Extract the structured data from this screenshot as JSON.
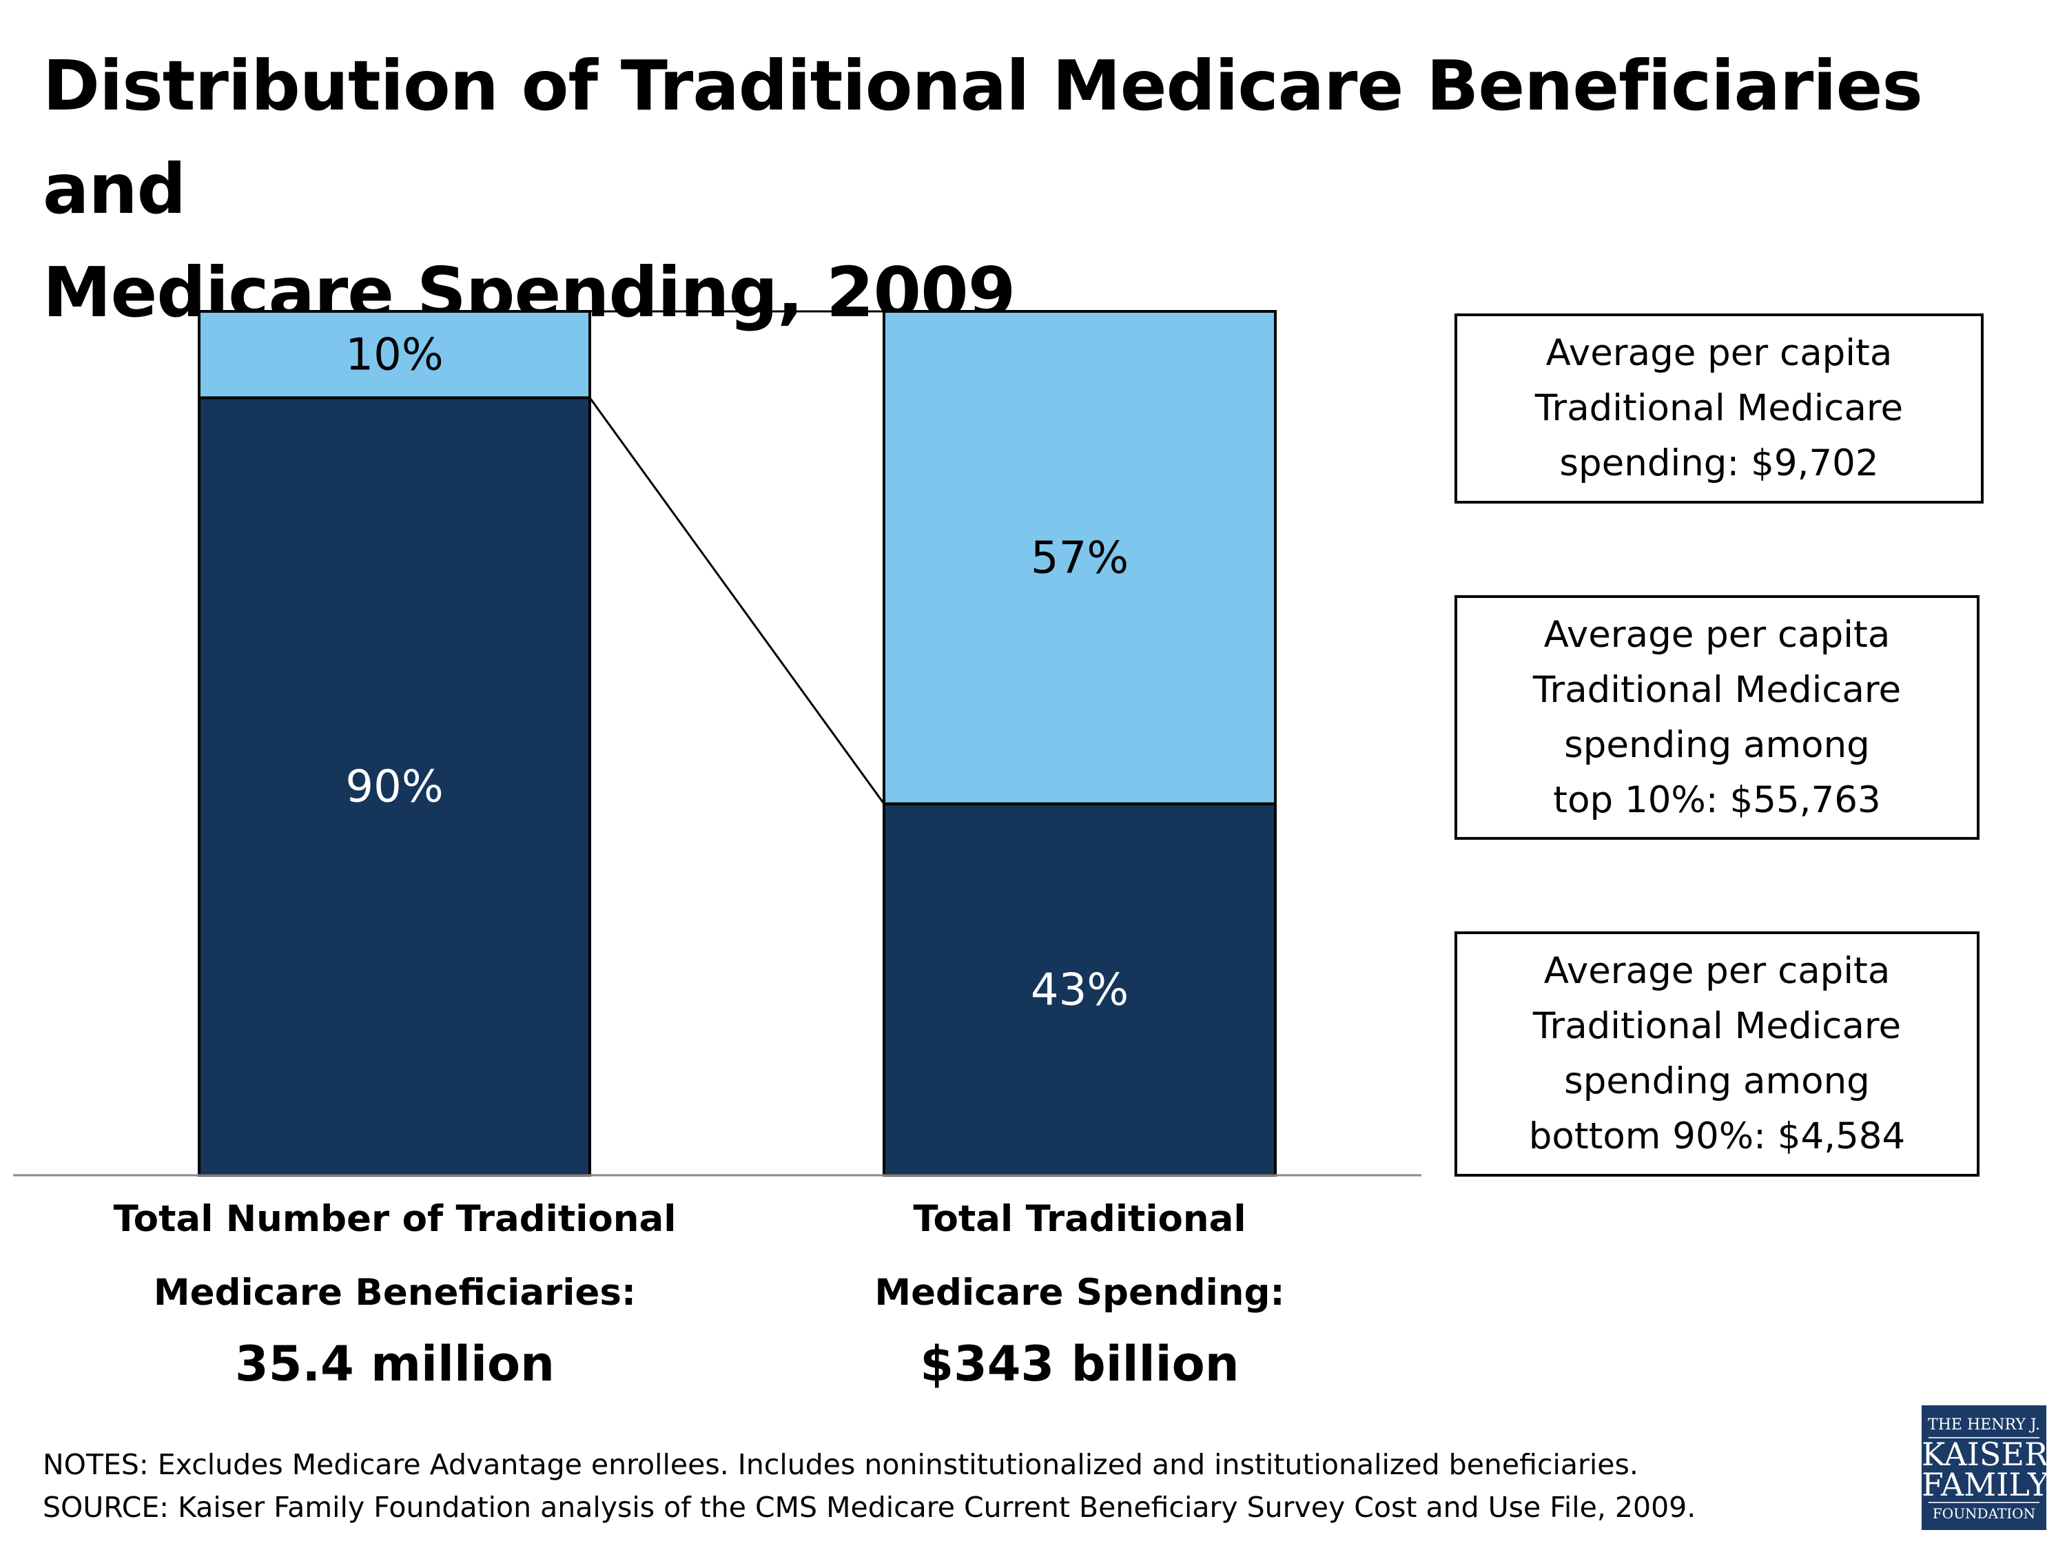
{
  "title": "Distribution of Traditional Medicare Beneficiaries and Medicare Spending, 2009",
  "title_lines": [
    "Distribution of Traditional Medicare Beneficiaries and",
    "Medicare Spending, 2009"
  ],
  "colors": {
    "top_segment": "#7ec6ee",
    "bottom_segment": "#15355a",
    "logo_bg": "#1b3a66"
  },
  "chart_data": {
    "type": "bar",
    "stacked": true,
    "percent_stacked": true,
    "categories": [
      "Total Number of Traditional Medicare Beneficiaries: 35.4 million",
      "Total Traditional Medicare Spending: $343 billion"
    ],
    "series": [
      {
        "values": [
          90,
          43
        ],
        "labels": [
          "90%",
          "43%"
        ],
        "color": "#15355a"
      },
      {
        "values": [
          10,
          57
        ],
        "labels": [
          "10%",
          "57%"
        ],
        "color": "#7ec6ee"
      }
    ],
    "ylim": [
      0,
      100
    ],
    "grid": false,
    "connector_line": true
  },
  "categories": [
    {
      "label": "Total Number of Traditional\nMedicare Beneficiaries:",
      "value": "35.4 million"
    },
    {
      "label": "Total Traditional\nMedicare Spending:",
      "value": "$343 billion"
    }
  ],
  "annotations": [
    "Average per capita\nTraditional Medicare\nspending: $9,702",
    "Average per capita\nTraditional Medicare\nspending among\ntop 10%: $55,763",
    "Average per capita\nTraditional Medicare\nspending among\nbottom 90%: $4,584"
  ],
  "notes": "NOTES: Excludes Medicare Advantage enrollees. Includes noninstitutionalized and institutionalized beneficiaries.",
  "source": "SOURCE: Kaiser Family Foundation analysis of the CMS Medicare Current Beneficiary Survey Cost and Use File, 2009.",
  "logo": {
    "line1": "THE HENRY J.",
    "line2": "KAISER",
    "line3": "FAMILY",
    "line4": "FOUNDATION"
  }
}
